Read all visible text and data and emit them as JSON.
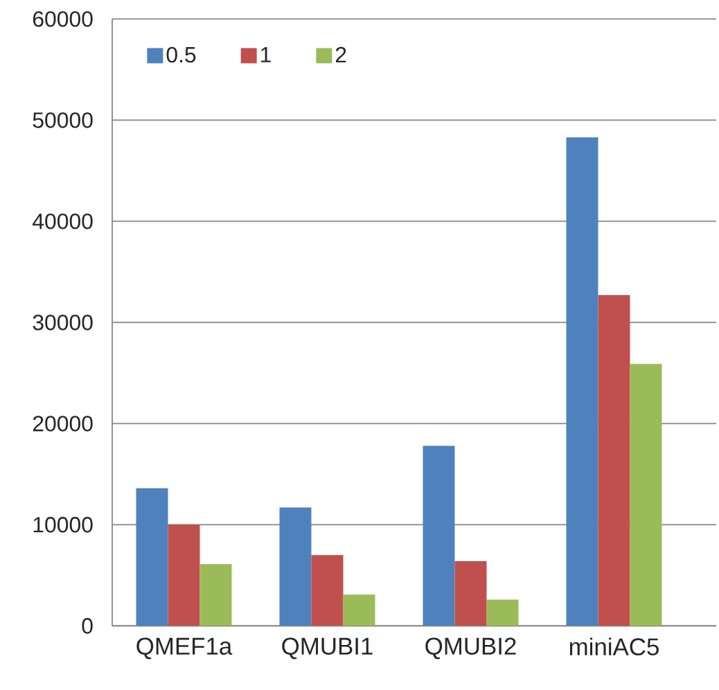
{
  "chart_data": {
    "type": "bar",
    "categories": [
      "QMEF1a",
      "QMUBI1",
      "QMUBI2",
      "miniAC5"
    ],
    "series": [
      {
        "name": "0.5",
        "color": "#4f81bd",
        "values": [
          13600,
          11700,
          17800,
          48300
        ]
      },
      {
        "name": "1",
        "color": "#c0504d",
        "values": [
          10000,
          7000,
          6400,
          32700
        ]
      },
      {
        "name": "2",
        "color": "#9bbb59",
        "values": [
          6100,
          3100,
          2600,
          25900
        ]
      }
    ],
    "ylim": [
      0,
      60000
    ],
    "yticks": [
      0,
      10000,
      20000,
      30000,
      40000,
      50000,
      60000
    ],
    "grid": "y",
    "legend": "top left"
  }
}
